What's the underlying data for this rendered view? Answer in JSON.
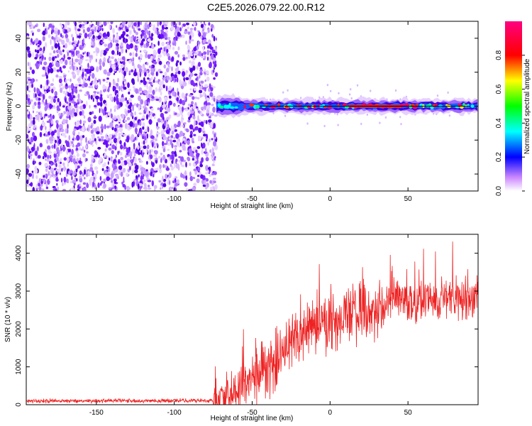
{
  "title": "C2E5.2026.079.22.00.R12",
  "chart_data": [
    {
      "type": "heatmap",
      "name": "spectrogram",
      "xlabel": "Height of straight line (km)",
      "ylabel": "Frequency (Hz)",
      "xlim": [
        -195,
        95
      ],
      "ylim": [
        -50,
        50
      ],
      "xticks": [
        -150,
        -100,
        -50,
        0,
        50
      ],
      "xtick_labels": [
        "-150",
        "-100",
        "-50",
        "0",
        "50"
      ],
      "yticks": [
        -40,
        -20,
        0,
        20,
        40
      ],
      "ytick_labels": [
        "-40",
        "-20",
        "0",
        "20",
        "40"
      ],
      "noise_region_x": [
        -195,
        -73
      ],
      "signal_frequency_hz": 0,
      "colorbar": {
        "label": "Normalized spectral amplitude",
        "range": [
          0,
          1
        ],
        "ticks": [
          0.0,
          0.2,
          0.4,
          0.6,
          0.8
        ],
        "tick_labels": [
          "0.0",
          "0.2",
          "0.4",
          "0.6",
          "0.8"
        ],
        "colormap": [
          "#ffffff",
          "#8a2be2",
          "#0000ff",
          "#00ffff",
          "#00ff00",
          "#ffff00",
          "#ff0000",
          "#ff0080"
        ]
      }
    },
    {
      "type": "line",
      "name": "snr",
      "xlabel": "Height of straight line (km)",
      "ylabel": "SNR (10 * v/v)",
      "xlim": [
        -195,
        95
      ],
      "ylim": [
        0,
        4500
      ],
      "xticks": [
        -150,
        -100,
        -50,
        0,
        50
      ],
      "xtick_labels": [
        "-150",
        "-100",
        "-50",
        "0",
        "50"
      ],
      "yticks": [
        0,
        1000,
        2000,
        3000,
        4000
      ],
      "ytick_labels": [
        "0",
        "1000",
        "2000",
        "3000",
        "4000"
      ],
      "color": "#ee2222",
      "trend": {
        "x": [
          -195,
          -75,
          -60,
          -50,
          -40,
          -30,
          -20,
          -10,
          0,
          10,
          20,
          30,
          40,
          50,
          60,
          70,
          80,
          95
        ],
        "y": [
          100,
          110,
          400,
          700,
          900,
          1400,
          1900,
          2100,
          2200,
          2350,
          2450,
          2300,
          2900,
          2700,
          2800,
          2750,
          2850,
          2800
        ]
      }
    }
  ]
}
